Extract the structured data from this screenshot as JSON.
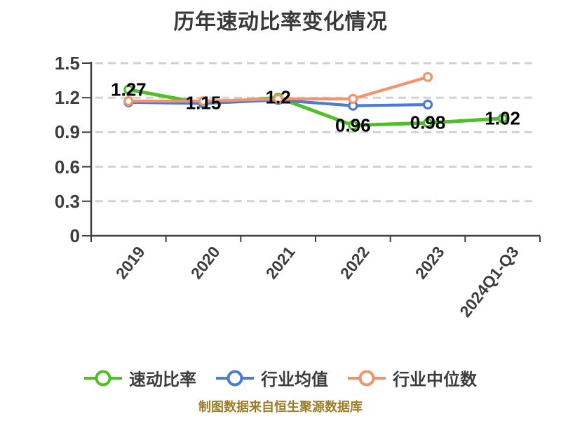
{
  "title": "历年速动比率变化情况",
  "footer": "制图数据来自恒生聚源数据库",
  "colors": {
    "background": "#ffffff",
    "axis": "#3f3f3f",
    "grid": "#d2d2d2",
    "tick_text": "#3d3d3d",
    "data_label": "#000000",
    "footer_text": "#9c7c28",
    "title_text": "#393939"
  },
  "chart_data": {
    "type": "line",
    "title": "历年速动比率变化情况",
    "categories": [
      "2019",
      "2020",
      "2021",
      "2022",
      "2023",
      "2024Q1-Q3"
    ],
    "ylim": [
      0,
      1.5
    ],
    "yticks": [
      0,
      0.3,
      0.6,
      0.9,
      1.2,
      1.5
    ],
    "ytick_labels": [
      "0",
      "0.3",
      "0.6",
      "0.9",
      "1.2",
      "1.5"
    ],
    "grid": "horizontal-dashed",
    "legend_position": "bottom",
    "series": [
      {
        "key": "quick-ratio",
        "name": "速动比率",
        "color": "#4fbe27",
        "values": [
          1.27,
          1.15,
          1.2,
          0.96,
          0.98,
          1.02
        ],
        "point_labels": [
          "1.27",
          "1.15",
          "1.2",
          "0.96",
          "0.98",
          "1.02"
        ]
      },
      {
        "key": "industry-avg",
        "name": "行业均值",
        "color": "#4b7bd5",
        "values": [
          1.16,
          1.15,
          1.18,
          1.13,
          1.14,
          null
        ],
        "point_labels": []
      },
      {
        "key": "industry-median",
        "name": "行业中位数",
        "color": "#f3936b",
        "values": [
          1.17,
          1.17,
          1.19,
          1.19,
          1.38,
          null
        ],
        "point_labels": []
      }
    ]
  }
}
